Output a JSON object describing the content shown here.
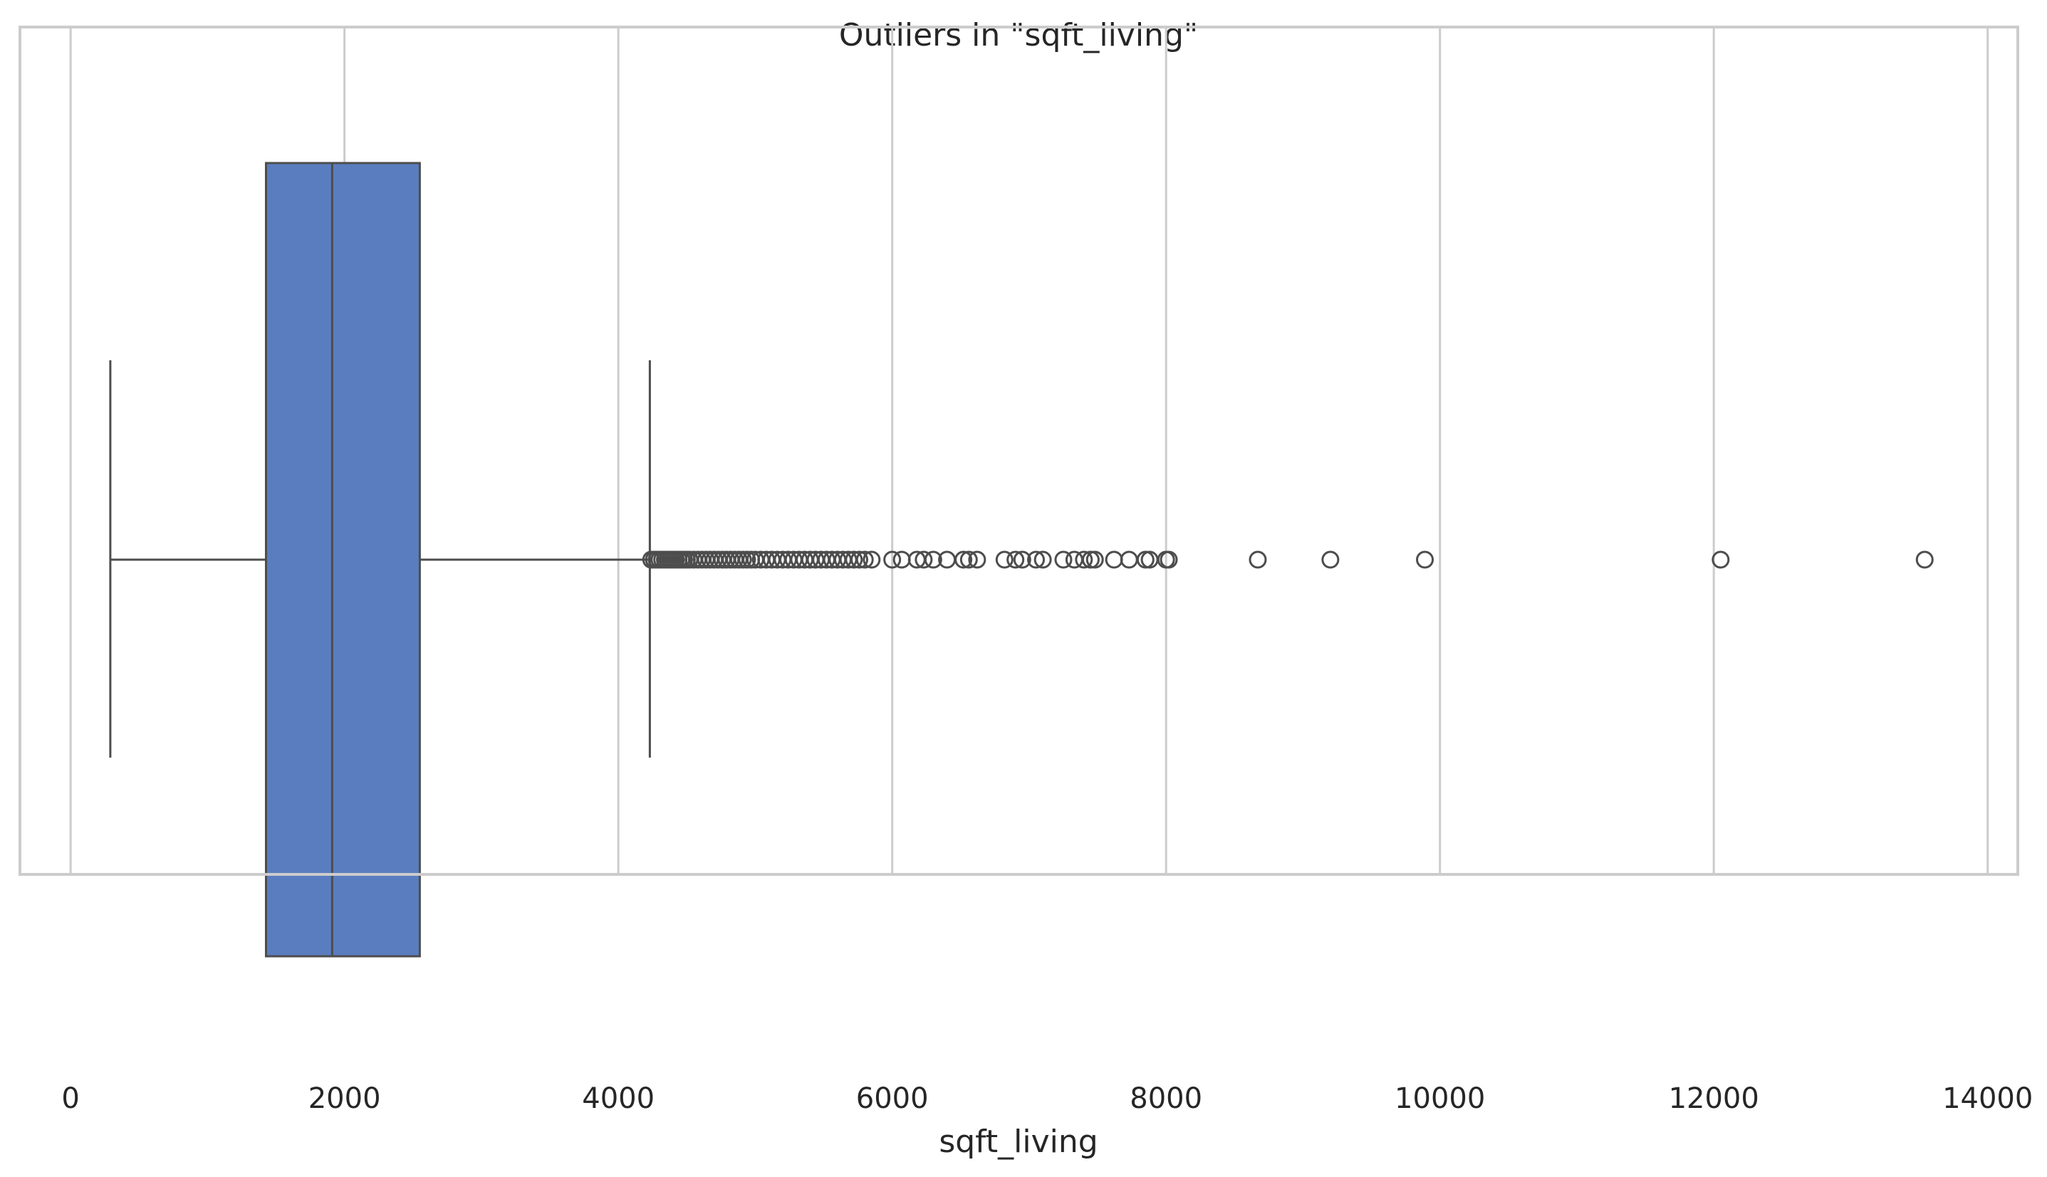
{
  "chart_data": {
    "type": "box",
    "orientation": "horizontal",
    "title": "Outliers in \"sqft_living\"",
    "xlabel": "sqft_living",
    "ylabel": "",
    "xlim": [
      -370,
      14220
    ],
    "xticks": [
      0,
      2000,
      4000,
      6000,
      8000,
      10000,
      12000,
      14000
    ],
    "xtick_labels": [
      "0",
      "2000",
      "4000",
      "6000",
      "8000",
      "10000",
      "12000",
      "14000"
    ],
    "grid": "vertical",
    "box": {
      "whisker_low": 290,
      "q1": 1427,
      "median": 1910,
      "q3": 2550,
      "whisker_high": 4230
    },
    "outliers": [
      4240,
      4260,
      4280,
      4300,
      4320,
      4340,
      4360,
      4380,
      4400,
      4420,
      4440,
      4460,
      4480,
      4500,
      4520,
      4550,
      4580,
      4610,
      4640,
      4670,
      4700,
      4730,
      4760,
      4790,
      4820,
      4850,
      4880,
      4910,
      4940,
      4970,
      5000,
      5040,
      5080,
      5120,
      5160,
      5200,
      5240,
      5280,
      5320,
      5360,
      5400,
      5440,
      5480,
      5520,
      5560,
      5600,
      5640,
      5680,
      5720,
      5760,
      5800,
      5850,
      6000,
      6070,
      6180,
      6230,
      6300,
      6400,
      6520,
      6560,
      6620,
      6820,
      6900,
      6950,
      7050,
      7100,
      7250,
      7330,
      7400,
      7450,
      7480,
      7620,
      7730,
      7850,
      7880,
      8000,
      8020,
      8670,
      9200,
      9890,
      12050,
      13540
    ],
    "colors": {
      "box_fill": "#5a7dbf",
      "line": "#4d4d4d",
      "grid": "#cccccc",
      "frame": "#cccccc"
    }
  }
}
